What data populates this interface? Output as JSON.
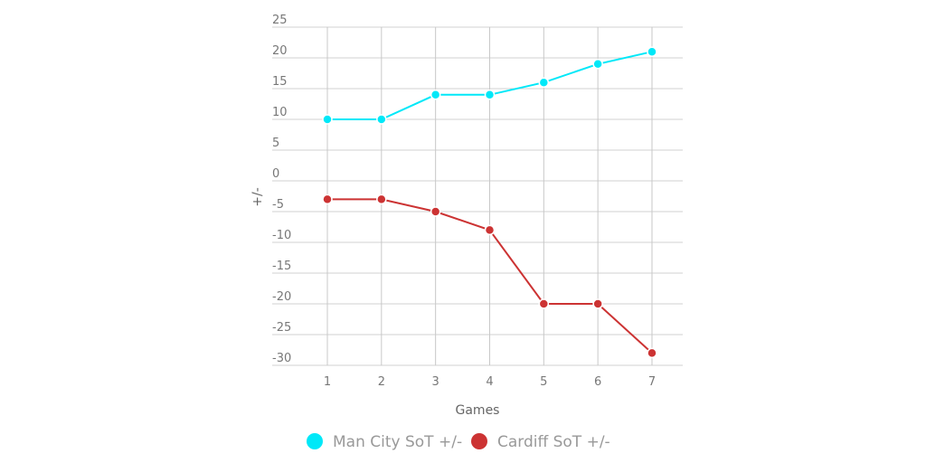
{
  "chart_data": {
    "type": "line",
    "title": "",
    "xlabel": "Games",
    "ylabel": "+/-",
    "x": [
      1,
      2,
      3,
      4,
      5,
      6,
      7
    ],
    "xticks": [
      "1",
      "2",
      "3",
      "4",
      "5",
      "6",
      "7"
    ],
    "ylim": [
      -30,
      25
    ],
    "yticks": [
      "25",
      "20",
      "15",
      "10",
      "5",
      "0",
      "-5",
      "-10",
      "-15",
      "-20",
      "-25",
      "-30"
    ],
    "grid": true,
    "legend_position": "bottom",
    "series": [
      {
        "name": "Man City SoT +/-",
        "color": "#00e8f8",
        "values": [
          10,
          10,
          14,
          14,
          16,
          19,
          21
        ]
      },
      {
        "name": "Cardiff SoT +/-",
        "color": "#cc3333",
        "values": [
          -3,
          -3,
          -5,
          -8,
          -20,
          -20,
          -28
        ]
      }
    ]
  }
}
